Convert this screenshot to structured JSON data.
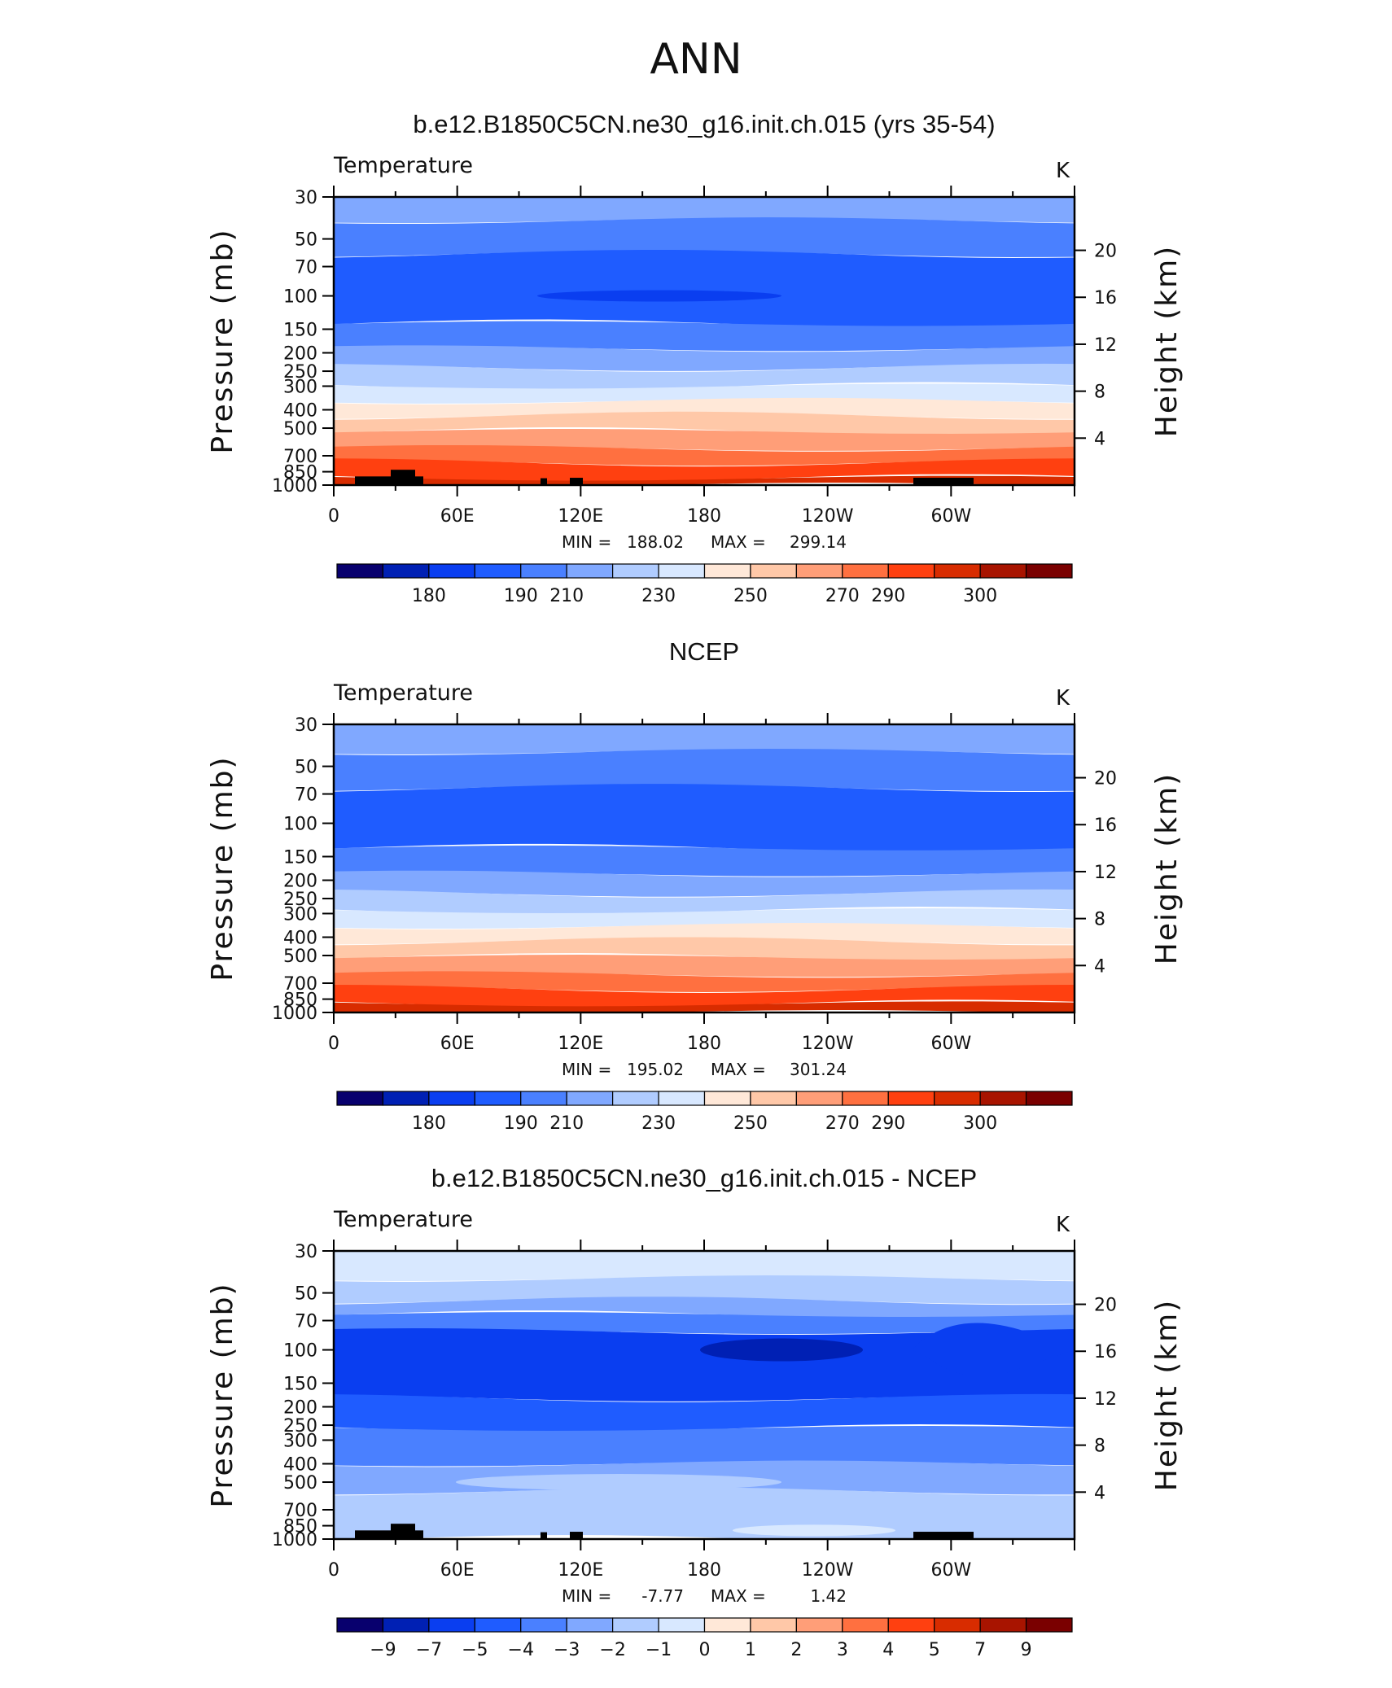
{
  "figure_title": "ANN",
  "chart_data": [
    {
      "type": "heatmap",
      "title": "b.e12.B1850C5CN.ne30_g16.init.ch.015 (yrs 35-54)",
      "left_label": "Temperature",
      "right_label": "K",
      "ylabel": "Pressure (mb)",
      "ylabel_right": "Height (km)",
      "x_ticks": [
        "0",
        "60E",
        "120E",
        "180",
        "120W",
        "60W"
      ],
      "y_ticks": [
        "30",
        "50",
        "70",
        "100",
        "150",
        "200",
        "250",
        "300",
        "400",
        "500",
        "700",
        "850",
        "1000"
      ],
      "height_ticks": [
        "20",
        "16",
        "12",
        "8",
        "4"
      ],
      "stats": {
        "min_label": "MIN =",
        "min": "188.02",
        "max_label": "MAX =",
        "max": "299.14"
      },
      "colorbar": {
        "labels": [
          "180",
          "190",
          "210",
          "230",
          "250",
          "270",
          "290",
          "300"
        ],
        "colors": [
          "#08006e",
          "#0020b4",
          "#0a3ef0",
          "#1f5cff",
          "#4a80ff",
          "#80a8ff",
          "#b0ccff",
          "#d8e8ff",
          "#ffe8d8",
          "#ffc8a8",
          "#ff9e78",
          "#ff7040",
          "#ff4010",
          "#d82c00",
          "#a81400",
          "#7a0000"
        ]
      },
      "bands": [
        {
          "p": [
            30,
            40
          ],
          "level": "#80a8ff"
        },
        {
          "p": [
            40,
            60
          ],
          "level": "#4a80ff"
        },
        {
          "p": [
            60,
            140
          ],
          "level": "#1f5cff"
        },
        {
          "p": [
            140,
            190
          ],
          "level": "#4a80ff"
        },
        {
          "p": [
            190,
            240
          ],
          "level": "#80a8ff"
        },
        {
          "p": [
            240,
            300
          ],
          "level": "#b0ccff"
        },
        {
          "p": [
            300,
            360
          ],
          "level": "#d8e8ff"
        },
        {
          "p": [
            360,
            430
          ],
          "level": "#ffe8d8"
        },
        {
          "p": [
            430,
            520
          ],
          "level": "#ffc8a8"
        },
        {
          "p": [
            520,
            640
          ],
          "level": "#ff9e78"
        },
        {
          "p": [
            640,
            760
          ],
          "level": "#ff7040"
        },
        {
          "p": [
            760,
            920
          ],
          "level": "#ff4010"
        },
        {
          "p": [
            920,
            1000
          ],
          "level": "#d82c00"
        }
      ]
    },
    {
      "type": "heatmap",
      "title": "NCEP",
      "left_label": "Temperature",
      "right_label": "K",
      "ylabel": "Pressure (mb)",
      "ylabel_right": "Height (km)",
      "x_ticks": [
        "0",
        "60E",
        "120E",
        "180",
        "120W",
        "60W"
      ],
      "y_ticks": [
        "30",
        "50",
        "70",
        "100",
        "150",
        "200",
        "250",
        "300",
        "400",
        "500",
        "700",
        "850",
        "1000"
      ],
      "height_ticks": [
        "20",
        "16",
        "12",
        "8",
        "4"
      ],
      "stats": {
        "min_label": "MIN =",
        "min": "195.02",
        "max_label": "MAX =",
        "max": "301.24"
      },
      "colorbar": {
        "labels": [
          "180",
          "190",
          "210",
          "230",
          "250",
          "270",
          "290",
          "300"
        ],
        "colors": [
          "#08006e",
          "#0020b4",
          "#0a3ef0",
          "#1f5cff",
          "#4a80ff",
          "#80a8ff",
          "#b0ccff",
          "#d8e8ff",
          "#ffe8d8",
          "#ffc8a8",
          "#ff9e78",
          "#ff7040",
          "#ff4010",
          "#d82c00",
          "#a81400",
          "#7a0000"
        ]
      },
      "bands": [
        {
          "p": [
            30,
            42
          ],
          "level": "#80a8ff"
        },
        {
          "p": [
            42,
            65
          ],
          "level": "#4a80ff"
        },
        {
          "p": [
            65,
            135
          ],
          "level": "#1f5cff"
        },
        {
          "p": [
            135,
            185
          ],
          "level": "#4a80ff"
        },
        {
          "p": [
            185,
            235
          ],
          "level": "#80a8ff"
        },
        {
          "p": [
            235,
            290
          ],
          "level": "#b0ccff"
        },
        {
          "p": [
            290,
            350
          ],
          "level": "#d8e8ff"
        },
        {
          "p": [
            350,
            420
          ],
          "level": "#ffe8d8"
        },
        {
          "p": [
            420,
            510
          ],
          "level": "#ffc8a8"
        },
        {
          "p": [
            510,
            630
          ],
          "level": "#ff9e78"
        },
        {
          "p": [
            630,
            750
          ],
          "level": "#ff7040"
        },
        {
          "p": [
            750,
            900
          ],
          "level": "#ff4010"
        },
        {
          "p": [
            900,
            1000
          ],
          "level": "#d82c00"
        }
      ]
    },
    {
      "type": "heatmap",
      "title": "b.e12.B1850C5CN.ne30_g16.init.ch.015 - NCEP",
      "left_label": "Temperature",
      "right_label": "K",
      "ylabel": "Pressure (mb)",
      "ylabel_right": "Height (km)",
      "x_ticks": [
        "0",
        "60E",
        "120E",
        "180",
        "120W",
        "60W"
      ],
      "y_ticks": [
        "30",
        "50",
        "70",
        "100",
        "150",
        "200",
        "250",
        "300",
        "400",
        "500",
        "700",
        "850",
        "1000"
      ],
      "height_ticks": [
        "20",
        "16",
        "12",
        "8",
        "4"
      ],
      "stats": {
        "min_label": "MIN =",
        "min": "-7.77",
        "max_label": "MAX =",
        "max": "1.42"
      },
      "colorbar": {
        "labels": [
          "−9",
          "−7",
          "−5",
          "−4",
          "−3",
          "−2",
          "−1",
          "0",
          "1",
          "2",
          "3",
          "4",
          "5",
          "7",
          "9"
        ],
        "colors": [
          "#08006e",
          "#0020b4",
          "#0a3ef0",
          "#1f5cff",
          "#4a80ff",
          "#80a8ff",
          "#b0ccff",
          "#d8e8ff",
          "#ffe8d8",
          "#ffc8a8",
          "#ff9e78",
          "#ff7040",
          "#ff4010",
          "#d82c00",
          "#a81400",
          "#7a0000"
        ]
      },
      "bands": [
        {
          "p": [
            30,
            42
          ],
          "level": "#d8e8ff"
        },
        {
          "p": [
            42,
            55
          ],
          "level": "#b0ccff"
        },
        {
          "p": [
            55,
            65
          ],
          "level": "#80a8ff"
        },
        {
          "p": [
            65,
            80
          ],
          "level": "#4a80ff"
        },
        {
          "p": [
            80,
            180
          ],
          "level": "#0a3ef0"
        },
        {
          "p": [
            180,
            260
          ],
          "level": "#1f5cff"
        },
        {
          "p": [
            260,
            400
          ],
          "level": "#4a80ff"
        },
        {
          "p": [
            400,
            560
          ],
          "level": "#80a8ff"
        },
        {
          "p": [
            560,
            1000
          ],
          "level": "#b0ccff"
        }
      ]
    }
  ]
}
